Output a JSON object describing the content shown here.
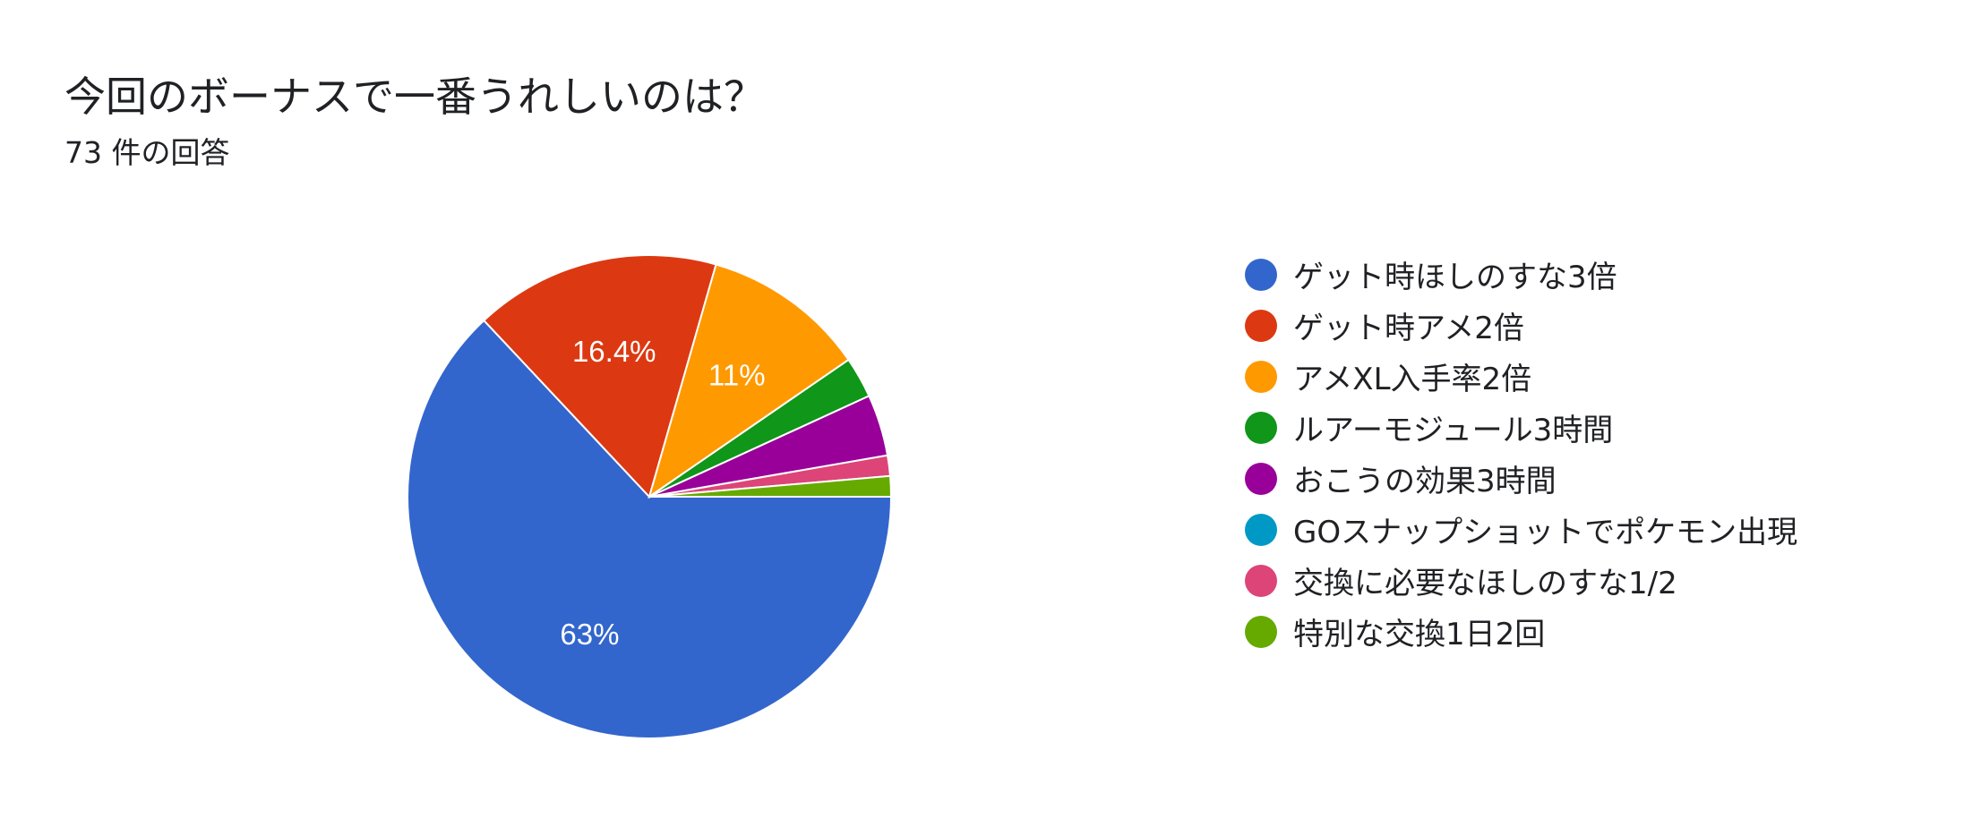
{
  "header": {
    "title": "今回のボーナスで一番うれしいのは？",
    "response_count": "73 件の回答"
  },
  "chart_data": {
    "type": "pie",
    "title": "今回のボーナスで一番うれしいのは？",
    "total_responses": 73,
    "legend_position": "right",
    "slices": [
      {
        "label": "ゲット時ほしのすな3倍",
        "count": 46,
        "percent_label": "63%",
        "color": "#3366cc"
      },
      {
        "label": "ゲット時アメ2倍",
        "count": 12,
        "percent_label": "16.4%",
        "color": "#dc3912"
      },
      {
        "label": "アメXL入手率2倍",
        "count": 8,
        "percent_label": "11%",
        "color": "#ff9900"
      },
      {
        "label": "ルアーモジュール3時間",
        "count": 2,
        "percent_label": "",
        "color": "#109618"
      },
      {
        "label": "おこうの効果3時間",
        "count": 3,
        "percent_label": "",
        "color": "#990099"
      },
      {
        "label": "GOスナップショットでポケモン出現",
        "count": 0,
        "percent_label": "",
        "color": "#0099c6"
      },
      {
        "label": "交換に必要なほしのすな1/2",
        "count": 1,
        "percent_label": "",
        "color": "#dd4477"
      },
      {
        "label": "特別な交換1日2回",
        "count": 1,
        "percent_label": "",
        "color": "#66aa00"
      }
    ]
  }
}
